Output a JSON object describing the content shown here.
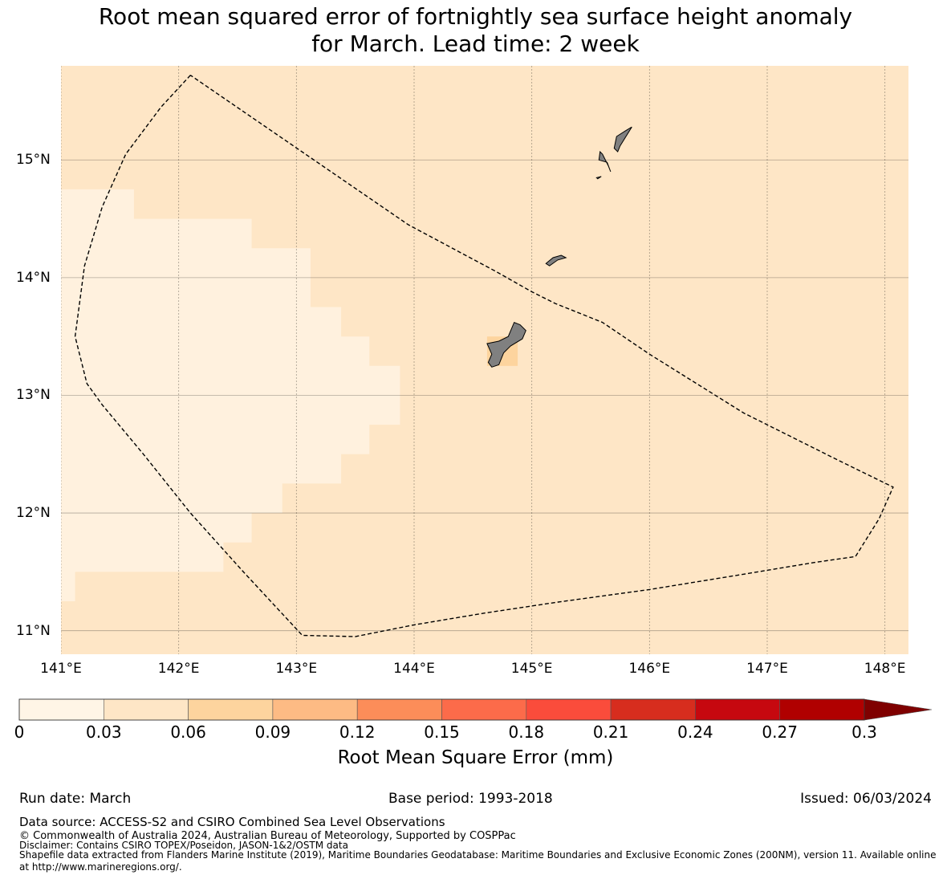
{
  "title_line1": "Root mean squared error of fortnightly sea surface height anomaly",
  "title_line2": "for March. Lead time: 2 week",
  "map": {
    "lon_range": [
      141.0,
      148.2
    ],
    "lat_range": [
      10.8,
      15.8
    ],
    "lat_ticks": [
      {
        "value": 15,
        "label": "15°N"
      },
      {
        "value": 14,
        "label": "14°N"
      },
      {
        "value": 13,
        "label": "13°N"
      },
      {
        "value": 12,
        "label": "12°N"
      },
      {
        "value": 11,
        "label": "11°N"
      }
    ],
    "lon_ticks": [
      {
        "value": 141,
        "label": "141°E"
      },
      {
        "value": 142,
        "label": "142°E"
      },
      {
        "value": 143,
        "label": "143°E"
      },
      {
        "value": 144,
        "label": "144°E"
      },
      {
        "value": 145,
        "label": "145°E"
      },
      {
        "value": 146,
        "label": "146°E"
      },
      {
        "value": 147,
        "label": "147°E"
      },
      {
        "value": 148,
        "label": "148°E"
      }
    ],
    "background_color": "#fee6c6",
    "low_color": "#fff1de",
    "hot_color": "#fdd49e",
    "land_color": "#808080",
    "eez_boundary": [
      [
        142.1,
        15.72
      ],
      [
        141.85,
        15.45
      ],
      [
        141.55,
        15.05
      ],
      [
        141.35,
        14.6
      ],
      [
        141.2,
        14.1
      ],
      [
        141.12,
        13.5
      ],
      [
        141.22,
        13.1
      ],
      [
        141.35,
        12.92
      ],
      [
        141.7,
        12.5
      ],
      [
        142.1,
        12.0
      ],
      [
        142.55,
        11.5
      ],
      [
        143.05,
        10.96
      ],
      [
        143.5,
        10.95
      ],
      [
        144.0,
        11.05
      ],
      [
        144.6,
        11.15
      ],
      [
        145.2,
        11.24
      ],
      [
        146.0,
        11.35
      ],
      [
        146.8,
        11.48
      ],
      [
        147.4,
        11.58
      ],
      [
        147.75,
        11.63
      ],
      [
        147.95,
        11.95
      ],
      [
        148.07,
        12.22
      ],
      [
        147.6,
        12.45
      ],
      [
        146.8,
        12.85
      ],
      [
        146.0,
        13.35
      ],
      [
        145.6,
        13.62
      ],
      [
        145.2,
        13.78
      ],
      [
        145.0,
        13.88
      ],
      [
        144.7,
        14.05
      ],
      [
        143.95,
        14.45
      ],
      [
        142.1,
        15.72
      ]
    ],
    "low_region": [
      [
        141.0,
        14.75
      ],
      [
        141.62,
        14.75
      ],
      [
        141.62,
        14.5
      ],
      [
        142.62,
        14.5
      ],
      [
        142.62,
        14.25
      ],
      [
        143.12,
        14.25
      ],
      [
        143.12,
        13.75
      ],
      [
        143.38,
        13.75
      ],
      [
        143.38,
        13.5
      ],
      [
        143.62,
        13.5
      ],
      [
        143.62,
        13.25
      ],
      [
        143.88,
        13.25
      ],
      [
        143.88,
        12.75
      ],
      [
        143.62,
        12.75
      ],
      [
        143.62,
        12.5
      ],
      [
        143.38,
        12.5
      ],
      [
        143.38,
        12.25
      ],
      [
        142.88,
        12.25
      ],
      [
        142.88,
        12.0
      ],
      [
        142.62,
        12.0
      ],
      [
        142.62,
        11.75
      ],
      [
        142.38,
        11.75
      ],
      [
        142.38,
        11.5
      ],
      [
        141.12,
        11.5
      ],
      [
        141.12,
        11.25
      ],
      [
        141.0,
        11.25
      ]
    ],
    "hot_cell": [
      [
        144.62,
        13.25
      ],
      [
        144.88,
        13.5
      ]
    ],
    "islands": [
      [
        [
          144.62,
          13.44
        ],
        [
          144.72,
          13.46
        ],
        [
          144.8,
          13.5
        ],
        [
          144.85,
          13.62
        ],
        [
          144.9,
          13.6
        ],
        [
          144.95,
          13.55
        ],
        [
          144.92,
          13.48
        ],
        [
          144.82,
          13.42
        ],
        [
          144.76,
          13.36
        ],
        [
          144.72,
          13.26
        ],
        [
          144.66,
          13.24
        ],
        [
          144.63,
          13.28
        ],
        [
          144.66,
          13.35
        ],
        [
          144.62,
          13.44
        ]
      ],
      [
        [
          145.12,
          14.12
        ],
        [
          145.18,
          14.17
        ],
        [
          145.25,
          14.19
        ],
        [
          145.29,
          14.17
        ],
        [
          145.22,
          14.15
        ],
        [
          145.15,
          14.1
        ],
        [
          145.12,
          14.12
        ]
      ],
      [
        [
          145.6,
          15.05
        ],
        [
          145.65,
          14.95
        ],
        [
          145.67,
          14.9
        ],
        [
          145.64,
          14.98
        ],
        [
          145.57,
          15.0
        ],
        [
          145.58,
          15.07
        ],
        [
          145.6,
          15.05
        ]
      ],
      [
        [
          145.7,
          15.1
        ],
        [
          145.73,
          15.07
        ],
        [
          145.75,
          15.12
        ],
        [
          145.85,
          15.28
        ],
        [
          145.8,
          15.25
        ],
        [
          145.72,
          15.2
        ],
        [
          145.7,
          15.1
        ]
      ],
      [
        [
          145.55,
          14.85
        ],
        [
          145.59,
          14.86
        ],
        [
          145.56,
          14.84
        ],
        [
          145.55,
          14.85
        ]
      ]
    ]
  },
  "colorbar": {
    "label": "Root Mean Square Error (mm)",
    "ticks": [
      "0",
      "0.03",
      "0.06",
      "0.09",
      "0.12",
      "0.15",
      "0.18",
      "0.21",
      "0.24",
      "0.27",
      "0.3"
    ],
    "colors": [
      "#fff5e6",
      "#fee6c6",
      "#fdd49e",
      "#fdbb84",
      "#fc8d59",
      "#fc6b4a",
      "#fa4c3b",
      "#d72d1e",
      "#c6080f",
      "#b00000"
    ],
    "extend_color": "#7f0000"
  },
  "footer": {
    "run_date": "Run date: March",
    "base_period": "Base period: 1993-2018",
    "issued": "Issued: 06/03/2024",
    "data_source": "Data source: ACCESS-S2 and CSIRO Combined Sea Level Observations",
    "copyright": "© Commonwealth of Australia 2024, Australian Bureau of Meteorology, Supported by COSPPac",
    "disclaimer": "Disclaimer: Contains CSIRO TOPEX/Poseidon, JASON-1&2/OSTM data",
    "shapefile_1": "Shapefile data extracted from Flanders Marine Institute (2019), Maritime Boundaries Geodatabase: Maritime Boundaries and Exclusive Economic Zones (200NM), version 11. Available online",
    "shapefile_2": "at http://www.marineregions.org/."
  }
}
